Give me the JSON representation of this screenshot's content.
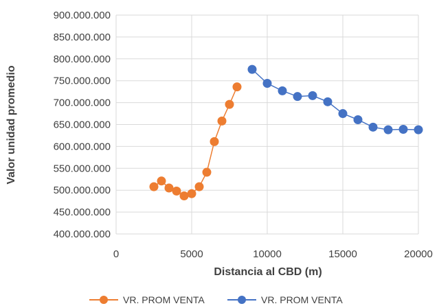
{
  "chart_data": {
    "type": "scatter",
    "xlabel": "Distancia al CBD (m)",
    "ylabel": "Valor unidad promedio",
    "xlim": [
      0,
      20000
    ],
    "ylim": [
      400000000,
      900000000
    ],
    "x_ticks": [
      0,
      5000,
      10000,
      15000,
      20000
    ],
    "x_tick_labels": [
      "0",
      "5000",
      "10000",
      "15000",
      "20000"
    ],
    "y_ticks": [
      400000000,
      450000000,
      500000000,
      550000000,
      600000000,
      650000000,
      700000000,
      750000000,
      800000000,
      850000000,
      900000000
    ],
    "y_tick_labels": [
      "400.000.000",
      "450.000.000",
      "500.000.000",
      "550.000.000",
      "600.000.000",
      "650.000.000",
      "700.000.000",
      "750.000.000",
      "800.000.000",
      "850.000.000",
      "900.000.000"
    ],
    "grid": true,
    "legend_position": "bottom",
    "series": [
      {
        "name": "VR. PROM VENTA",
        "color": "#ED7D31",
        "x": [
          2500,
          3000,
          3500,
          4000,
          4500,
          5000,
          5500,
          6000,
          6500,
          7000,
          7500,
          8000
        ],
        "y": [
          508000000,
          521000000,
          505000000,
          498000000,
          487000000,
          492000000,
          508000000,
          541000000,
          611000000,
          658000000,
          696000000,
          736000000
        ]
      },
      {
        "name": "VR. PROM VENTA",
        "color": "#4472C4",
        "x": [
          9000,
          10000,
          11000,
          12000,
          13000,
          14000,
          15000,
          16000,
          17000,
          18000,
          19000,
          20000
        ],
        "y": [
          776000000,
          744000000,
          727000000,
          714000000,
          716000000,
          702000000,
          675000000,
          661000000,
          644000000,
          638000000,
          639000000,
          638000000
        ]
      }
    ]
  }
}
